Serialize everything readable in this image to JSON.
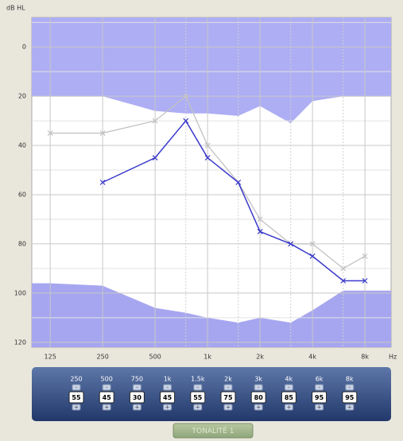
{
  "chart_data": {
    "type": "line",
    "y_label": "dB HL",
    "x_label": "Hz",
    "x": [
      125,
      250,
      500,
      750,
      1000,
      1500,
      2000,
      3000,
      4000,
      6000,
      8000
    ],
    "xscale": "log",
    "xlim": [
      98,
      11300
    ],
    "xticks": [
      125,
      250,
      500,
      {
        "value": 1000,
        "label": "1k"
      },
      {
        "value": 2000,
        "label": "2k"
      },
      {
        "value": 4000,
        "label": "4k"
      },
      {
        "value": 8000,
        "label": "8k"
      }
    ],
    "minor_xticks": [
      750,
      1500,
      3000,
      6000
    ],
    "ylim": [
      -12,
      122
    ],
    "y_inverted": true,
    "yticks": [
      0,
      20,
      40,
      60,
      80,
      100,
      120
    ],
    "minor_yticks": [
      -10,
      10,
      30,
      50,
      70,
      90,
      110
    ],
    "grid": true,
    "bands": [
      {
        "edge": "top",
        "color": "#aeaef4",
        "values": [
          20,
          20,
          26,
          27,
          27,
          28,
          24,
          31,
          22,
          20,
          20
        ]
      },
      {
        "edge": "bottom",
        "color": "#a6a6f0",
        "values": [
          96,
          97,
          106,
          108,
          110,
          112,
          110,
          112,
          107,
          99,
          99
        ]
      }
    ],
    "series": [
      {
        "color": "#c2c2c2",
        "values": [
          35,
          35,
          30,
          20,
          40,
          55,
          70,
          80,
          80,
          90,
          85
        ]
      },
      {
        "color": "#3a3acb",
        "values": [
          null,
          55,
          45,
          30,
          45,
          55,
          75,
          80,
          85,
          95,
          95
        ]
      }
    ]
  },
  "panel": {
    "labels": [
      "250",
      "500",
      "750",
      "1k",
      "1.5k",
      "2k",
      "3k",
      "4k",
      "6k",
      "8k"
    ],
    "minus": "-",
    "plus": "+",
    "button": "TONALITÉ 1"
  }
}
